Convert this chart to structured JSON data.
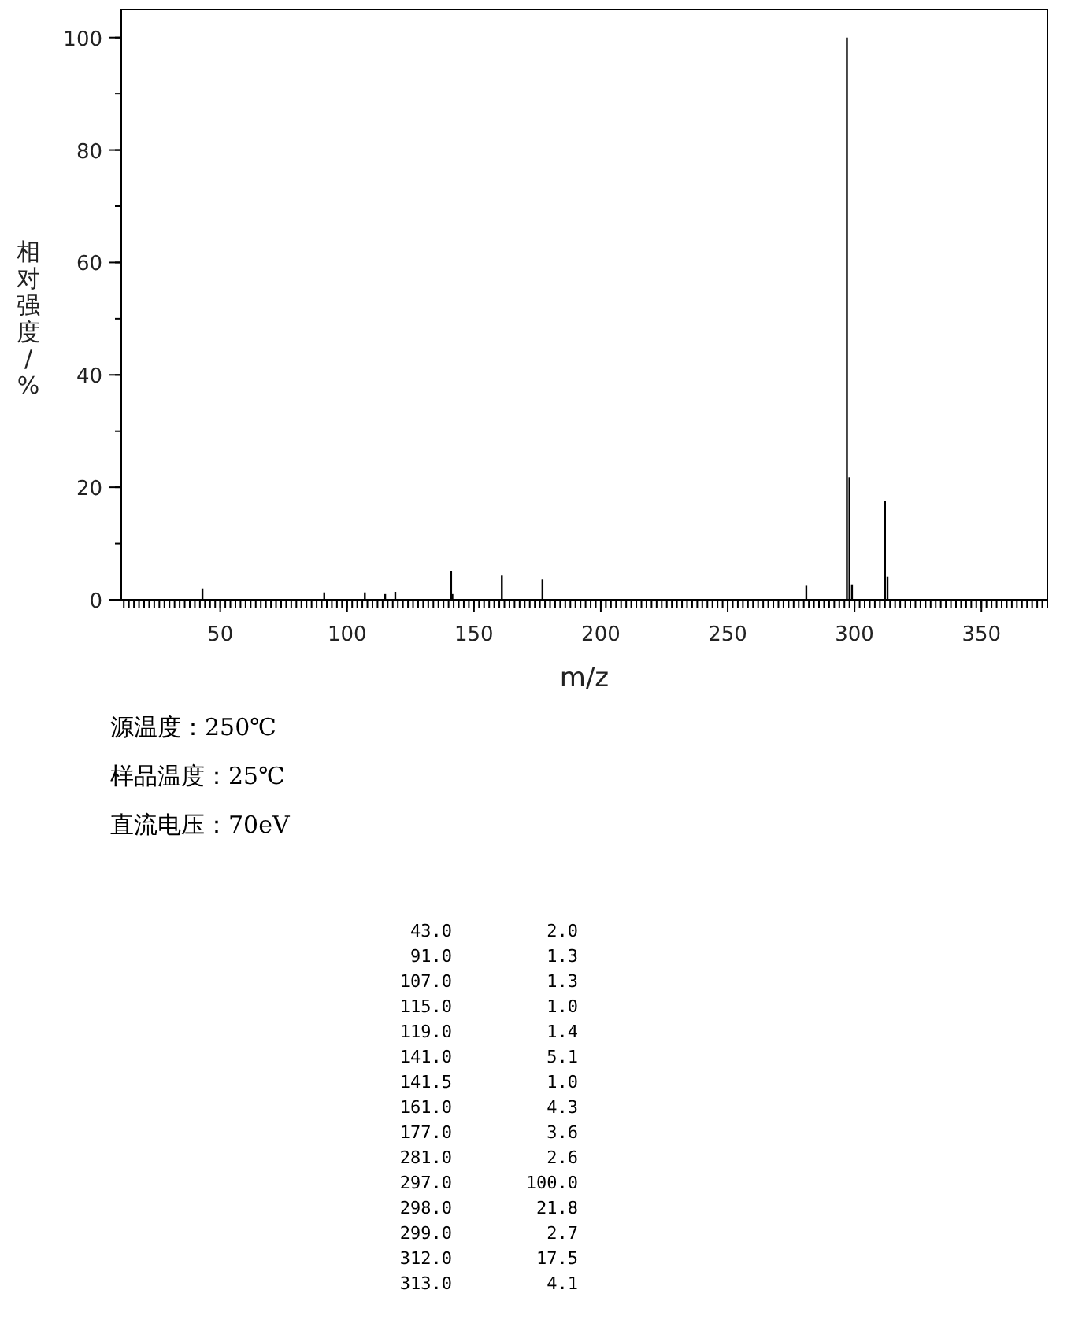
{
  "chart_data": {
    "type": "bar",
    "xlabel": "m/z",
    "ylabel": "相对强度/%",
    "x": [
      43.0,
      91.0,
      107.0,
      115.0,
      119.0,
      141.0,
      141.5,
      161.0,
      177.0,
      281.0,
      297.0,
      298.0,
      299.0,
      312.0,
      313.0
    ],
    "values": [
      2.0,
      1.3,
      1.3,
      1.0,
      1.4,
      5.1,
      1.0,
      4.3,
      3.6,
      2.6,
      100.0,
      21.8,
      2.7,
      17.5,
      4.1
    ],
    "color": "#000000",
    "xlim": [
      11,
      376
    ],
    "xticks": [
      50,
      100,
      150,
      200,
      250,
      300,
      350
    ],
    "ylim": [
      0,
      105
    ],
    "yticks": [
      0,
      20,
      40,
      60,
      80,
      100
    ],
    "grid": false,
    "annotations": [
      "源温度：250℃",
      "样品温度：25℃",
      "直流电压：70eV",
      "43.0",
      "2.0",
      "91.0",
      "1.3",
      "107.0",
      "1.3",
      "115.0",
      "1.0",
      "119.0",
      "1.4",
      "141.0",
      "5.1",
      "141.5",
      "1.0",
      "161.0",
      "4.3",
      "177.0",
      "3.6",
      "281.0",
      "2.6",
      "297.0",
      "100.0",
      "298.0",
      "21.8",
      "299.0",
      "2.7",
      "312.0",
      "17.5",
      "313.0",
      "4.1"
    ]
  }
}
